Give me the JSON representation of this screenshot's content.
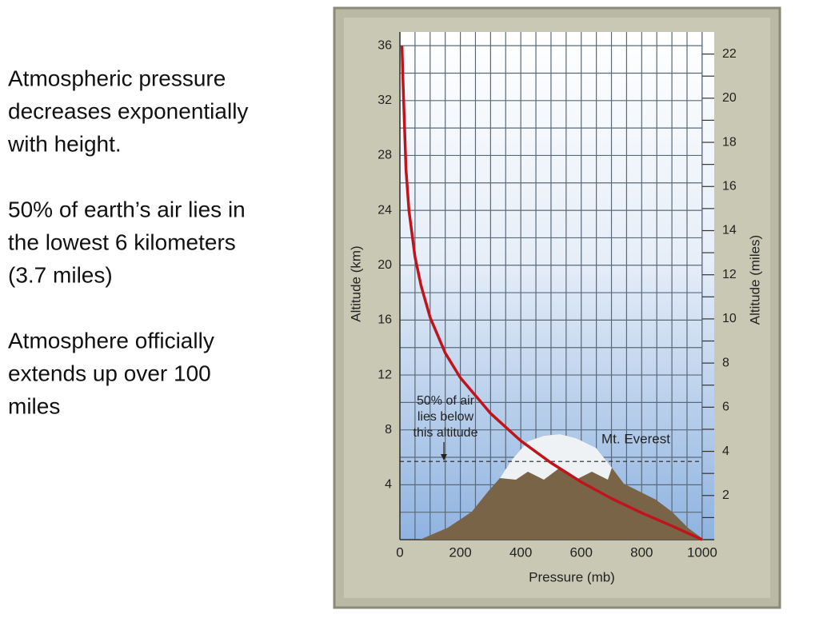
{
  "slide_text": [
    [
      "Atmospheric pressure",
      "decreases exponentially",
      "with height."
    ],
    [
      "50% of earth’s air lies in",
      "the lowest 6 kilometers",
      "(3.7 miles)"
    ],
    [
      "Atmosphere officially",
      "extends up over 100",
      "miles"
    ]
  ],
  "chart_data": {
    "type": "line",
    "color": "#c0141c",
    "x": [
      7,
      10,
      20,
      30,
      50,
      70,
      100,
      150,
      200,
      300,
      400,
      500,
      600,
      700,
      800,
      900,
      1000
    ],
    "values": [
      36,
      33.5,
      27,
      24,
      20.6,
      18.5,
      16.2,
      13.6,
      11.8,
      9.2,
      7.2,
      5.6,
      4.2,
      3,
      1.95,
      1,
      0
    ],
    "xlabel": "Pressure (mb)",
    "ylabel": "Altitude (km)",
    "y2label": "Altitude (miles)",
    "xlim": [
      0,
      1040
    ],
    "xticks": [
      0,
      200,
      400,
      600,
      800,
      1000
    ],
    "xminorticks": [
      50,
      100,
      150,
      250,
      300,
      350,
      450,
      500,
      550,
      650,
      700,
      750,
      850,
      900,
      950,
      1000
    ],
    "ylim": [
      0,
      37
    ],
    "yticks": [
      4,
      8,
      12,
      16,
      20,
      24,
      28,
      32,
      36
    ],
    "yminorticks": [
      2,
      6,
      10,
      14,
      18,
      22,
      26,
      30,
      34
    ],
    "y2lim": [
      0,
      23
    ],
    "y2ticks": [
      2,
      4,
      6,
      8,
      10,
      12,
      14,
      16,
      18,
      20,
      22
    ],
    "y2minorticks": [
      1,
      3,
      5,
      7,
      9,
      11,
      13,
      15,
      17,
      19,
      21
    ],
    "grid": true,
    "reference_line": 5.7,
    "reference_label": [
      "50% of air",
      "lies below",
      "this altitude"
    ],
    "landmark_label": "Mt. Everest"
  }
}
